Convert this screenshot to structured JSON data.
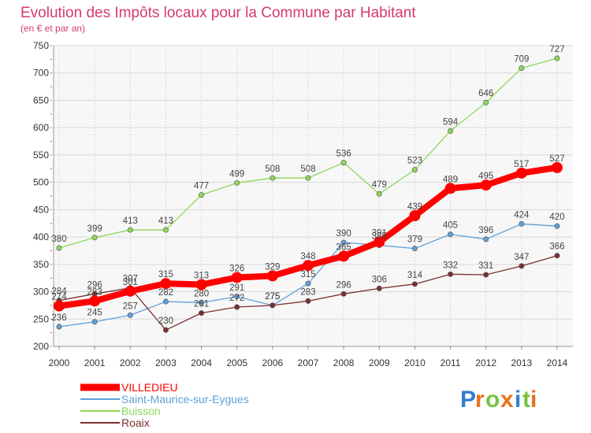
{
  "chart_data": {
    "type": "line",
    "title": "Evolution des Impôts locaux pour la Commune par Habitant",
    "subtitle": "(en € et par an)",
    "xlabel": "",
    "ylabel": "",
    "x": [
      "2000",
      "2001",
      "2002",
      "2003",
      "2004",
      "2005",
      "2006",
      "2007",
      "2008",
      "2009",
      "2010",
      "2011",
      "2012",
      "2013",
      "2014"
    ],
    "ylim": [
      200,
      750
    ],
    "yticks": [
      200,
      250,
      300,
      350,
      400,
      450,
      500,
      550,
      600,
      650,
      700,
      750
    ],
    "grid": true,
    "legend_position": "bottom-left",
    "series": [
      {
        "name": "VILLEDIEU",
        "color": "#ff0000",
        "values": [
          274,
          283,
          301,
          315,
          313,
          326,
          329,
          348,
          365,
          391,
          439,
          489,
          495,
          517,
          527
        ]
      },
      {
        "name": "Saint-Maurice-sur-Eygues",
        "color": "#5f9fd6",
        "values": [
          236,
          245,
          257,
          282,
          280,
          291,
          275,
          315,
          390,
          385,
          379,
          405,
          396,
          424,
          420
        ]
      },
      {
        "name": "Buisson",
        "color": "#8ed65a",
        "values": [
          380,
          399,
          413,
          413,
          477,
          499,
          508,
          508,
          536,
          479,
          523,
          594,
          646,
          709,
          727
        ]
      },
      {
        "name": "Roaix",
        "color": "#7a2f2f",
        "values": [
          284,
          296,
          307,
          230,
          261,
          272,
          275,
          283,
          296,
          306,
          314,
          332,
          331,
          347,
          366
        ]
      }
    ]
  },
  "logo": {
    "text": "Proxiti"
  }
}
